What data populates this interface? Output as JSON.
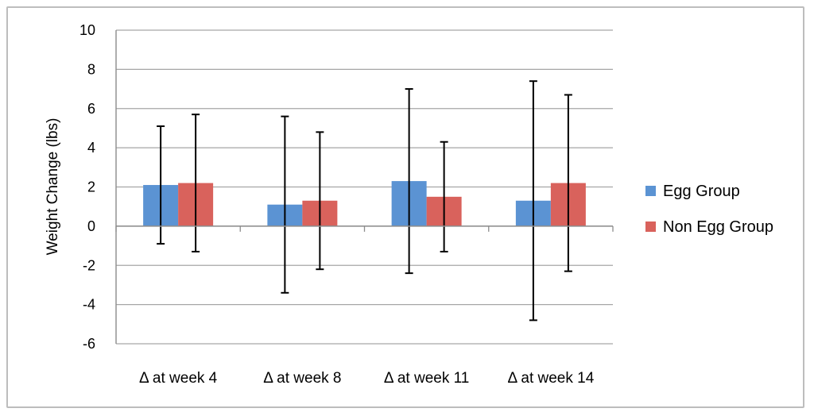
{
  "chart_data": {
    "type": "bar",
    "title": "",
    "xlabel": "",
    "ylabel": "Weight Change (lbs)",
    "ylim": [
      -6,
      10
    ],
    "yticks": [
      -6,
      -4,
      -2,
      0,
      2,
      4,
      6,
      8,
      10
    ],
    "y_tick_labels": [
      "-6",
      "-4",
      "-2",
      "0",
      "2",
      "4",
      "6",
      "8",
      "10"
    ],
    "grid": true,
    "legend_position": "right",
    "categories": [
      "Δ at week 4",
      "Δ at week 8",
      "Δ at week 11",
      "Δ at week 14"
    ],
    "series": [
      {
        "name": "Egg Group",
        "color": "#5b93d3",
        "values": [
          2.1,
          1.1,
          2.3,
          1.3
        ],
        "error_low": [
          -0.9,
          -3.4,
          -2.4,
          -4.8
        ],
        "error_high": [
          5.1,
          5.6,
          7.0,
          7.4
        ]
      },
      {
        "name": "Non Egg Group",
        "color": "#d9625c",
        "values": [
          2.2,
          1.3,
          1.5,
          2.2
        ],
        "error_low": [
          -1.3,
          -2.2,
          -1.3,
          -2.3
        ],
        "error_high": [
          5.7,
          4.8,
          4.3,
          6.7
        ]
      }
    ]
  }
}
